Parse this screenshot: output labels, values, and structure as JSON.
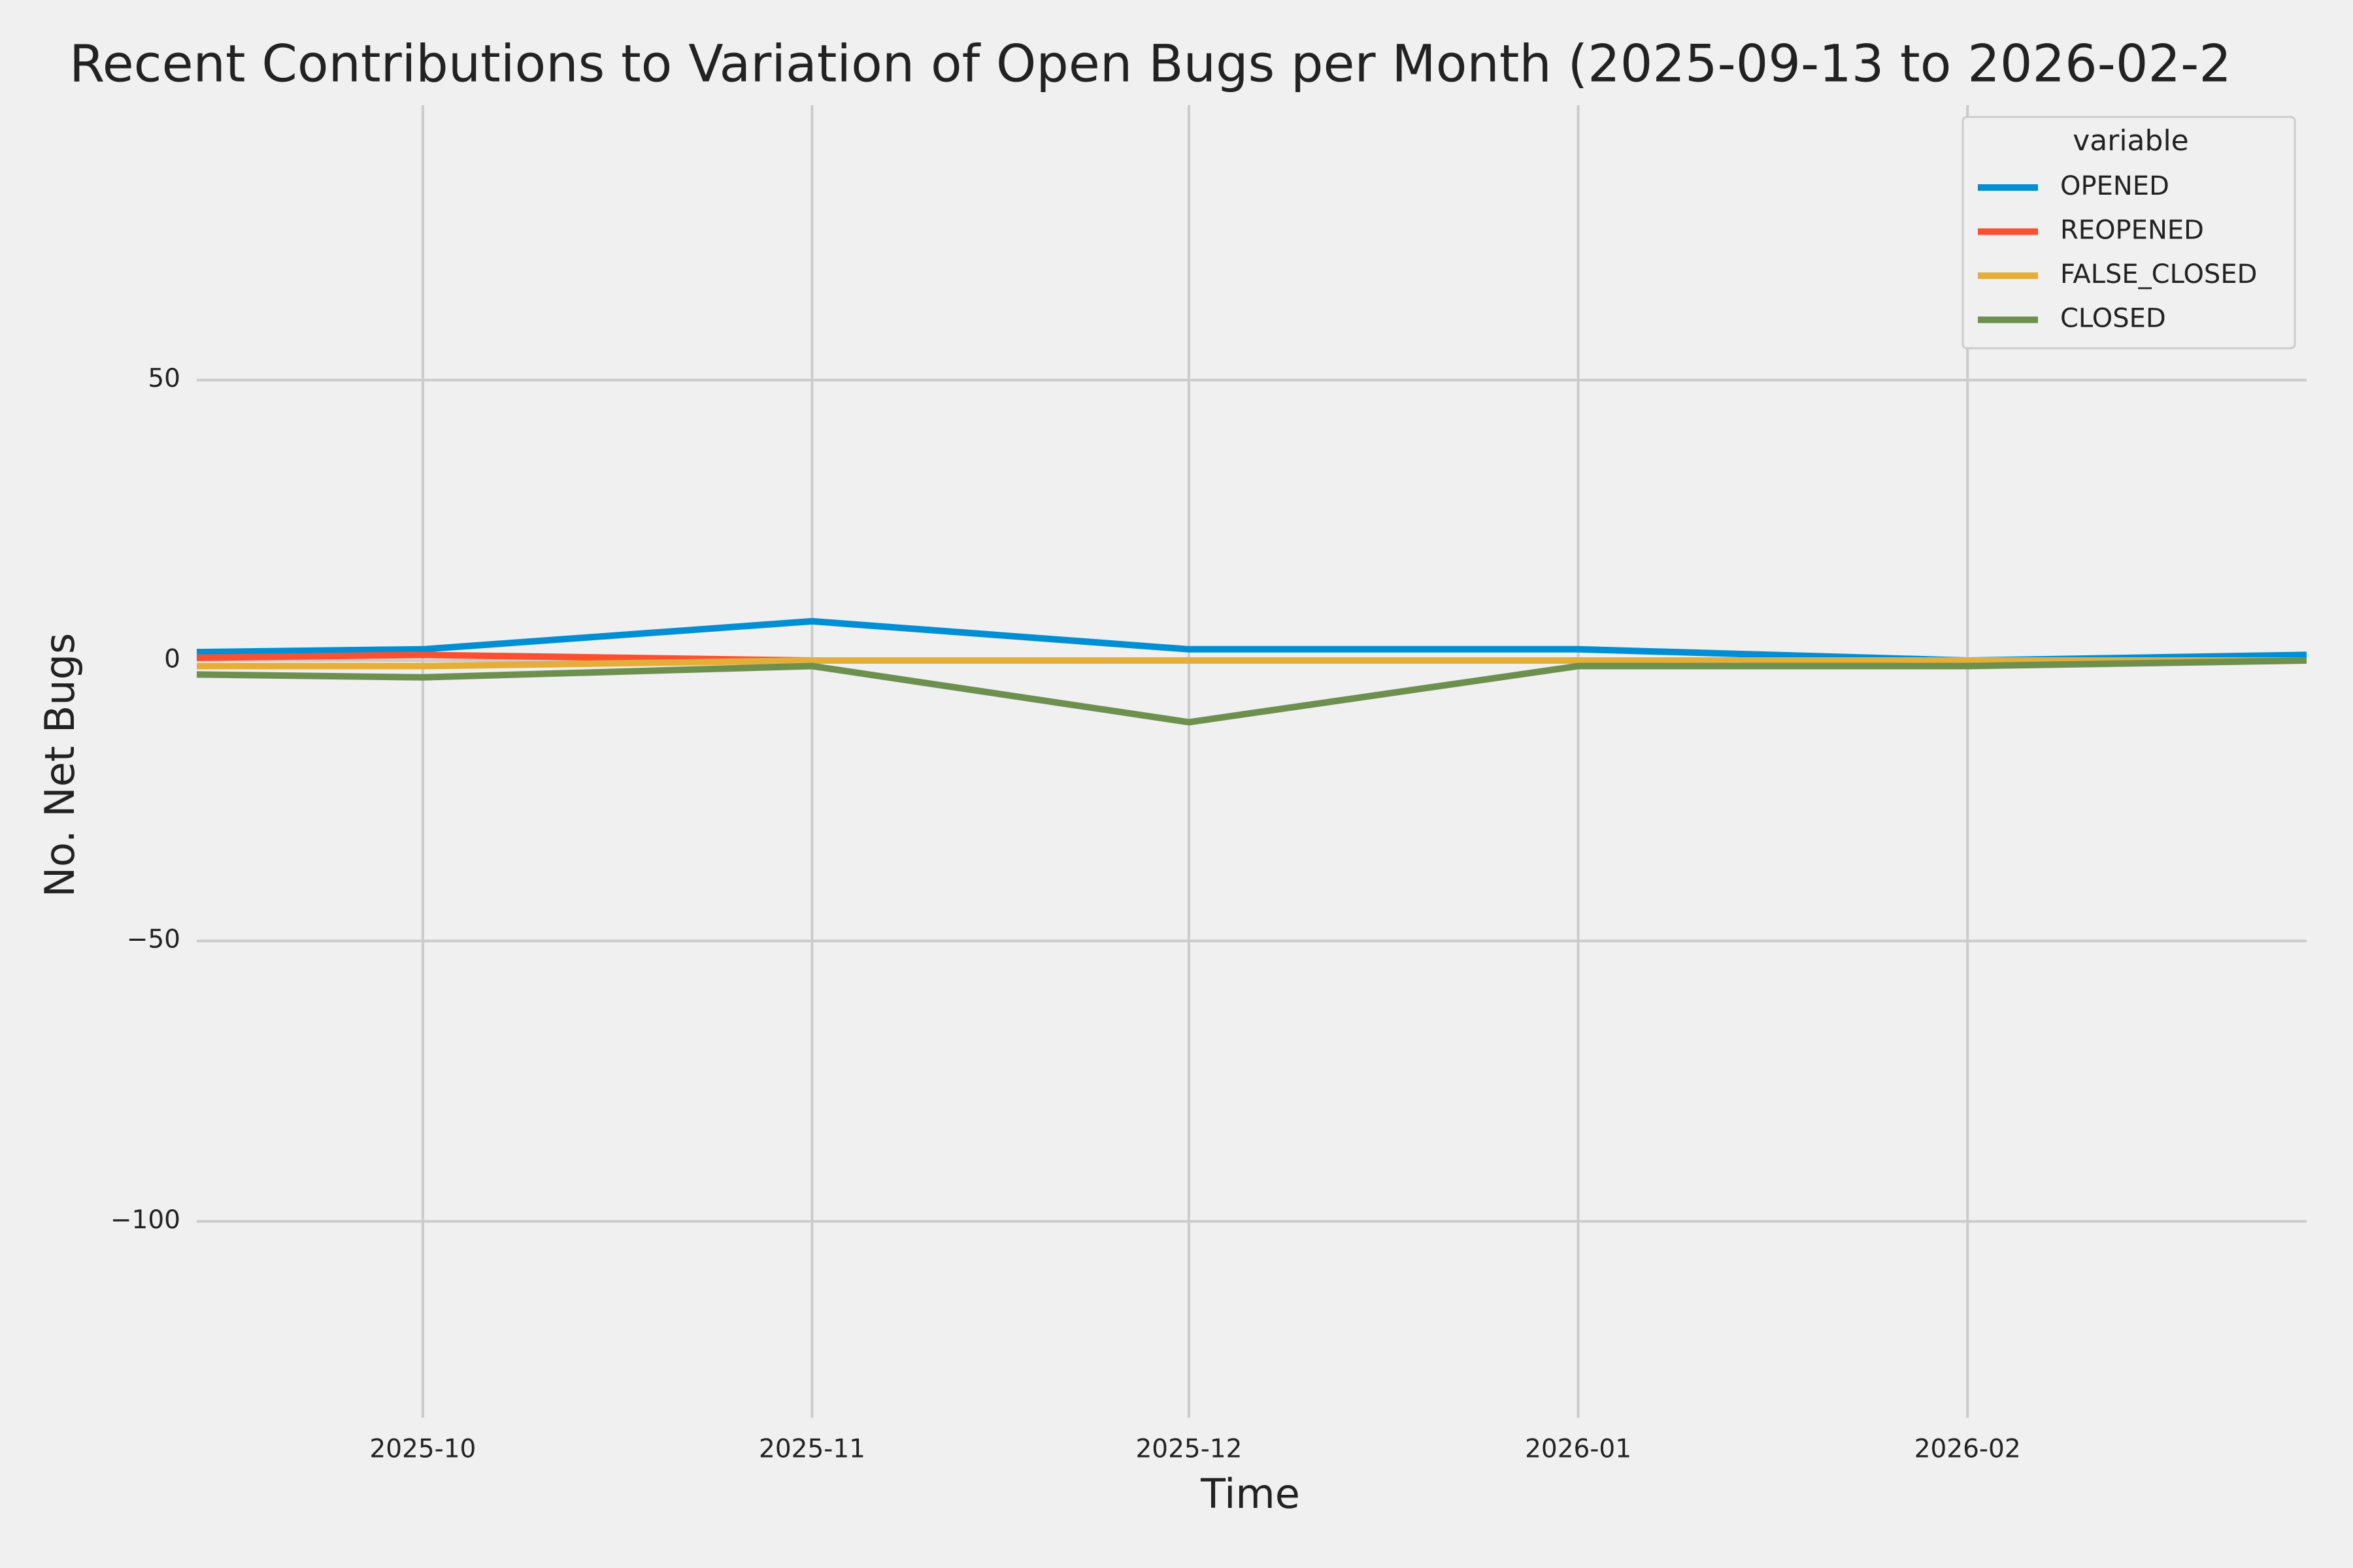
{
  "chart_data": {
    "type": "line",
    "title": "Recent Contributions to Variation of Open Bugs per Month (2025-09-13 to 2026-02-2",
    "x_label": "Time",
    "y_label": "No. Net Bugs",
    "x": [
      "2025-09-13",
      "2025-10",
      "2025-11",
      "2025-12",
      "2026-01",
      "2026-02",
      "2026-02-28"
    ],
    "xlim": [
      "2025-09-13",
      "2026-02-28"
    ],
    "xticks": [
      "2025-10",
      "2025-11",
      "2025-12",
      "2026-01",
      "2026-02"
    ],
    "ylim": [
      -135,
      99
    ],
    "yticks": [
      {
        "value": -100,
        "label": "−100"
      },
      {
        "value": -50,
        "label": "−50"
      },
      0,
      50
    ],
    "grid": true,
    "legend_title": "variable",
    "legend_position": "upper-right",
    "series": [
      {
        "name": "OPENED",
        "color": "#008fd5",
        "values": [
          1.5,
          2,
          7,
          2,
          2,
          0,
          1
        ]
      },
      {
        "name": "REOPENED",
        "color": "#fc4f30",
        "values": [
          0.5,
          1,
          0,
          0,
          0,
          0,
          0
        ]
      },
      {
        "name": "FALSE_CLOSED",
        "color": "#e5ae38",
        "values": [
          -1,
          -1,
          0,
          0,
          0,
          0,
          0
        ]
      },
      {
        "name": "CLOSED",
        "color": "#6d904f",
        "values": [
          -2.5,
          -3,
          -1,
          -11,
          -1,
          -1,
          0
        ]
      }
    ]
  }
}
